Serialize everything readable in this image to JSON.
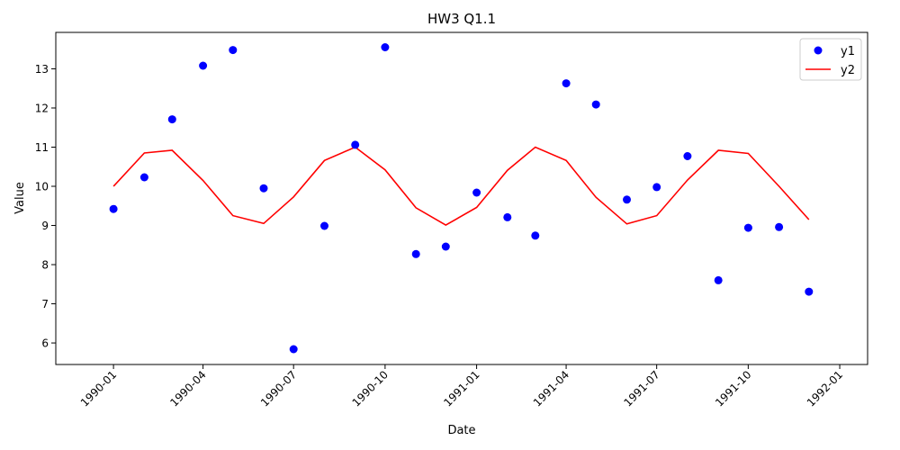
{
  "chart_data": {
    "type": "scatter+line",
    "title": "HW3 Q1.1",
    "xlabel": "Date",
    "ylabel": "Value",
    "x": [
      "1990-01",
      "1990-02",
      "1990-03",
      "1990-04",
      "1990-05",
      "1990-06",
      "1990-07",
      "1990-08",
      "1990-09",
      "1990-10",
      "1990-11",
      "1990-12",
      "1991-01",
      "1991-02",
      "1991-03",
      "1991-04",
      "1991-05",
      "1991-06",
      "1991-07",
      "1991-08",
      "1991-09",
      "1991-10",
      "1991-11",
      "1991-12"
    ],
    "series": [
      {
        "name": "y1",
        "kind": "scatter",
        "color": "#0000ff",
        "values": [
          9.42,
          10.23,
          11.71,
          13.08,
          13.48,
          9.95,
          5.84,
          8.99,
          11.06,
          13.55,
          8.27,
          8.46,
          9.84,
          9.21,
          8.74,
          12.63,
          12.09,
          9.66,
          9.98,
          10.77,
          7.6,
          8.94,
          8.96,
          7.31
        ]
      },
      {
        "name": "y2",
        "kind": "line",
        "color": "#ff0000",
        "values": [
          10.0,
          10.85,
          10.92,
          10.15,
          9.25,
          9.05,
          9.73,
          10.66,
          11.0,
          10.42,
          9.45,
          9.01,
          9.46,
          10.41,
          11.0,
          10.66,
          9.72,
          9.04,
          9.25,
          10.16,
          10.92,
          10.84,
          10.0,
          9.15
        ]
      }
    ],
    "xticks": [
      "1990-01",
      "1990-04",
      "1990-07",
      "1990-10",
      "1991-01",
      "1991-04",
      "1991-07",
      "1991-10",
      "1992-01"
    ],
    "yticks": [
      6,
      7,
      8,
      9,
      10,
      11,
      12,
      13
    ],
    "ylim": [
      5.45,
      13.93
    ],
    "xlim": [
      "1989-11-04",
      "1992-01-29"
    ],
    "legend": "top-right",
    "grid": false
  }
}
